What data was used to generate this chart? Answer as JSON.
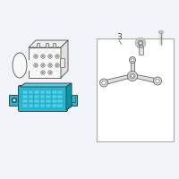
{
  "bg_color": "#f0f4f8",
  "part_bg": "#ffffff",
  "line_color": "#666666",
  "line_color_dark": "#444444",
  "icm_fill": "#29b6d4",
  "icm_fill_light": "#4dd0e8",
  "icm_fill_dark": "#0097a7",
  "icm_texture": "#22a0bc",
  "box_border": "#aaaaaa",
  "screw_color": "#888888",
  "bracket_color": "#bbbbbb",
  "bracket_fill": "#dddddd"
}
